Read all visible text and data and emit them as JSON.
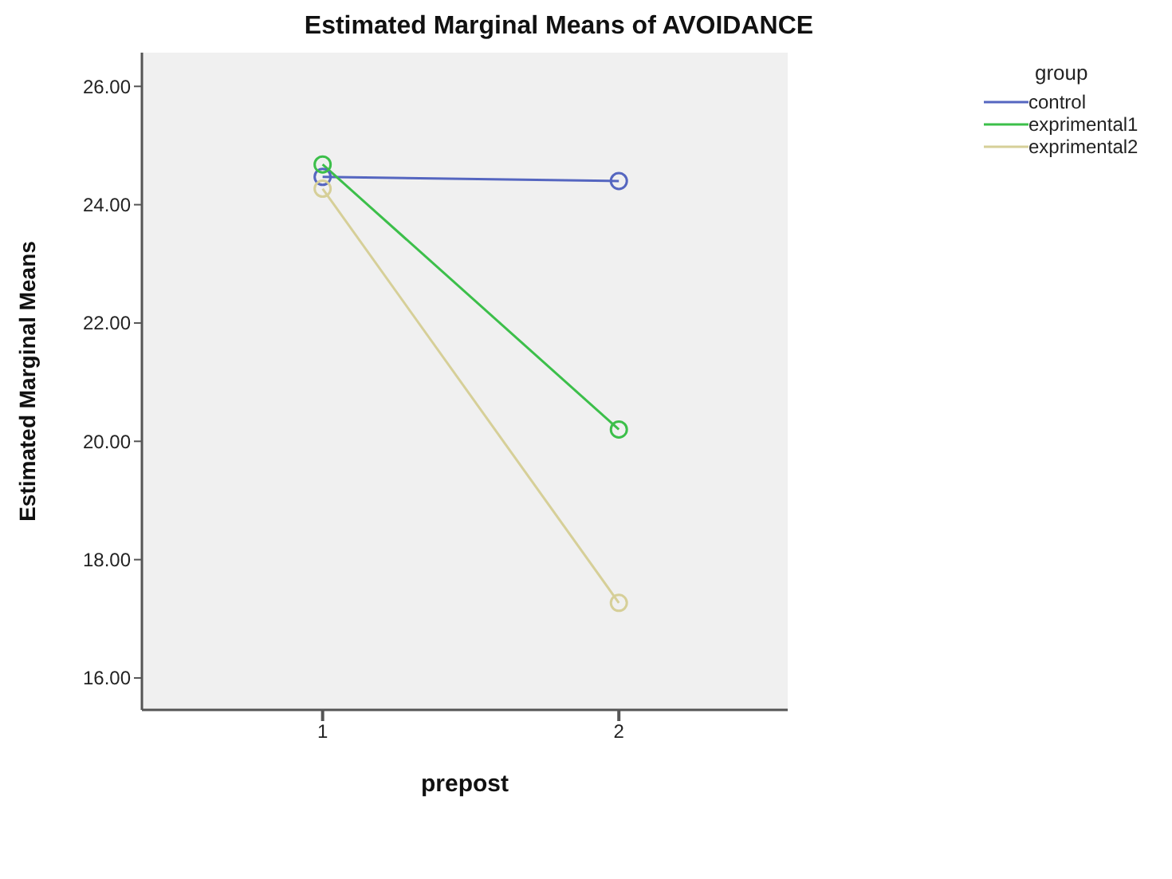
{
  "chart_data": {
    "type": "line",
    "title": "Estimated Marginal Means of AVOIDANCE",
    "xlabel": "prepost",
    "ylabel": "Estimated Marginal Means",
    "legend_title": "group",
    "x": [
      1,
      2
    ],
    "series": [
      {
        "name": "control",
        "color": "#5566c0",
        "values": [
          24.47,
          24.4
        ]
      },
      {
        "name": "exprimental1",
        "color": "#3cbf4a",
        "values": [
          24.68,
          20.2
        ]
      },
      {
        "name": "exprimental2",
        "color": "#d6cf98",
        "values": [
          24.27,
          17.27
        ]
      }
    ],
    "xlim": [
      0.39,
      2.57
    ],
    "xticks": [
      1,
      2
    ],
    "ylim": [
      15.46,
      26.57
    ],
    "yticks": [
      {
        "value": 16,
        "label": "16.00"
      },
      {
        "value": 18,
        "label": "18.00"
      },
      {
        "value": 20,
        "label": "20.00"
      },
      {
        "value": 22,
        "label": "22.00"
      },
      {
        "value": 24,
        "label": "24.00"
      },
      {
        "value": 26,
        "label": "26.00"
      }
    ],
    "legend": "top right",
    "marker": "circle",
    "line_style": "solid",
    "grid": false
  }
}
